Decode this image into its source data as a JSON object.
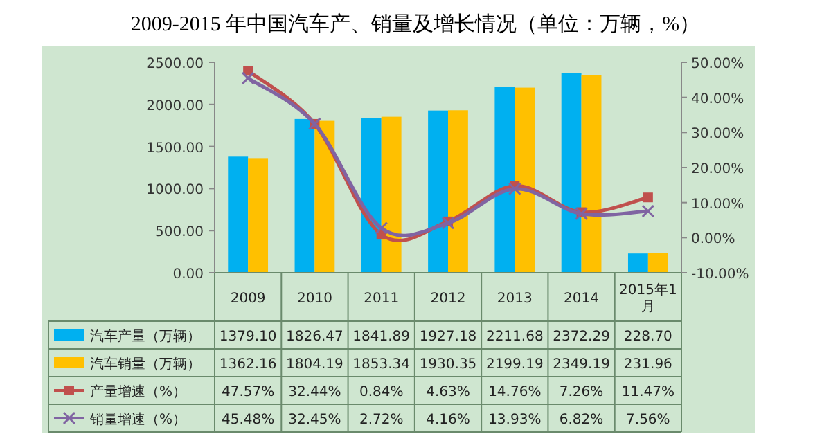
{
  "chart_data": {
    "type": "bar",
    "title": "2009-2015 年中国汽车产、销量及增长情况（单位：万辆，%）",
    "categories": [
      "2009",
      "2010",
      "2011",
      "2012",
      "2013",
      "2014",
      "2015年1月"
    ],
    "series": [
      {
        "name": "汽车产量（万辆）",
        "color": "#00b0f0",
        "values": [
          1379.1,
          1826.47,
          1841.89,
          1927.18,
          2211.68,
          2372.29,
          228.7
        ],
        "value_labels": [
          "1379.10",
          "1826.47",
          "1841.89",
          "1927.18",
          "2211.68",
          "2372.29",
          "228.70"
        ]
      },
      {
        "name": "汽车销量（万辆）",
        "color": "#ffc000",
        "values": [
          1362.16,
          1804.19,
          1853.34,
          1930.35,
          2199.19,
          2349.19,
          231.96
        ],
        "value_labels": [
          "1362.16",
          "1804.19",
          "1853.34",
          "1930.35",
          "2199.19",
          "2349.19",
          "231.96"
        ]
      },
      {
        "name": "产量增速（%）",
        "type": "line",
        "axis": "y2",
        "marker": "square",
        "color": "#c0504d",
        "values": [
          47.57,
          32.44,
          0.84,
          4.63,
          14.76,
          7.26,
          11.47
        ],
        "value_labels": [
          "47.57%",
          "32.44%",
          "0.84%",
          "4.63%",
          "14.76%",
          "7.26%",
          "11.47%"
        ]
      },
      {
        "name": "销量增速（%）",
        "type": "line",
        "axis": "y2",
        "marker": "cross",
        "color": "#8064a2",
        "values": [
          45.48,
          32.45,
          2.72,
          4.16,
          13.93,
          6.82,
          7.56
        ],
        "value_labels": [
          "45.48%",
          "32.45%",
          "2.72%",
          "4.16%",
          "13.93%",
          "6.82%",
          "7.56%"
        ]
      }
    ],
    "ylim": [
      0,
      2500
    ],
    "yticks": [
      {
        "value": 0,
        "label": "0.00"
      },
      {
        "value": 500,
        "label": "500.00"
      },
      {
        "value": 1000,
        "label": "1000.00"
      },
      {
        "value": 1500,
        "label": "1500.00"
      },
      {
        "value": 2000,
        "label": "2000.00"
      },
      {
        "value": 2500,
        "label": "2500.00"
      }
    ],
    "y2lim": [
      -10,
      50
    ],
    "y2ticks": [
      {
        "value": -10,
        "label": "-10.00%"
      },
      {
        "value": 0,
        "label": "0.00%"
      },
      {
        "value": 10,
        "label": "10.00%"
      },
      {
        "value": 20,
        "label": "20.00%"
      },
      {
        "value": 30,
        "label": "30.00%"
      },
      {
        "value": 40,
        "label": "40.00%"
      },
      {
        "value": 50,
        "label": "50.00%"
      }
    ],
    "legend": "bottom left",
    "line_style": "solid"
  }
}
